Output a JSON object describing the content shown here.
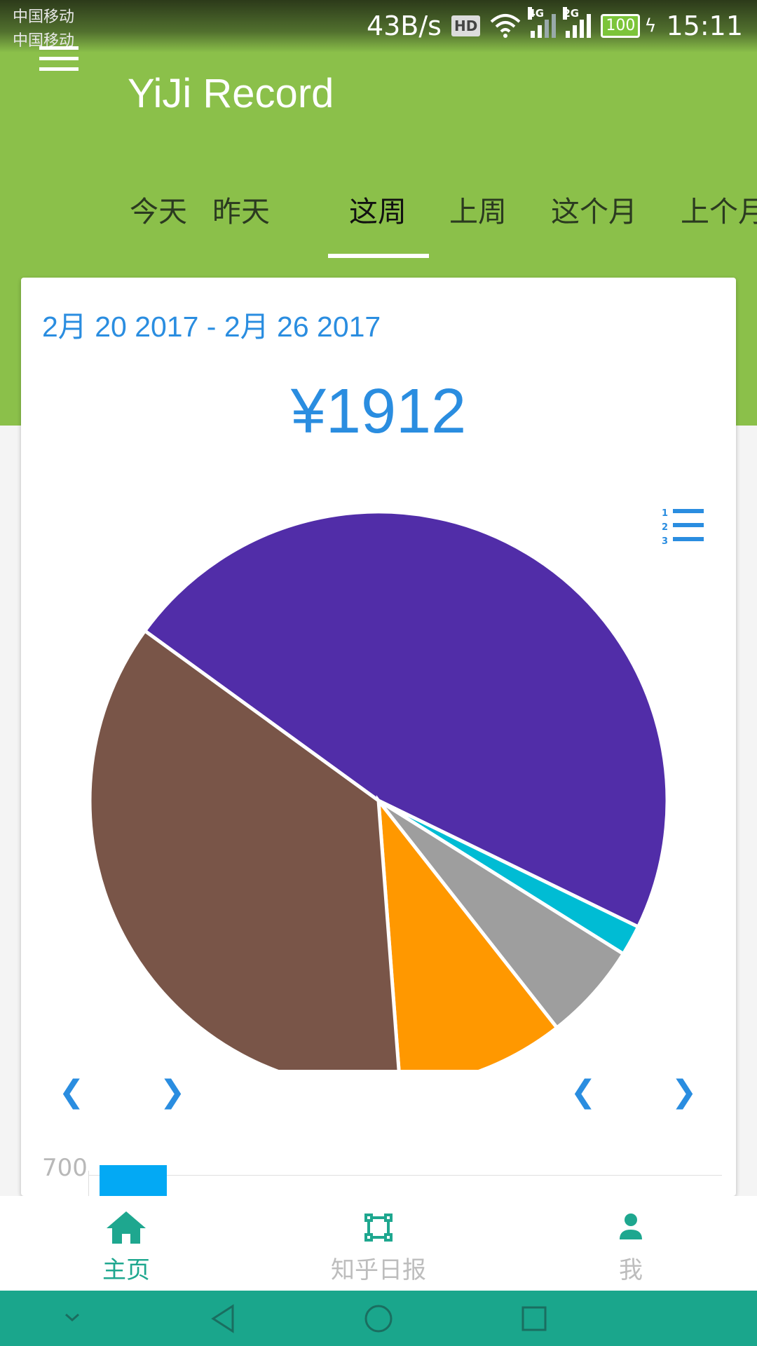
{
  "status_bar": {
    "carrier1": "中国移动",
    "carrier2": "中国移动",
    "speed": "43B/s",
    "hd": "HD",
    "net1": "4G",
    "net2": "2G",
    "battery": "100",
    "time": "15:11"
  },
  "header": {
    "title": "YiJi Record",
    "tabs": [
      "今天",
      "昨天",
      "这周",
      "上周",
      "这个月",
      "上个月"
    ],
    "active_tab": "这周"
  },
  "card": {
    "date_range": "2月 20 2017 - 2月 26 2017",
    "total": "¥1912",
    "bar_axis_label": "700"
  },
  "chart_data": {
    "type": "pie",
    "values": [
      47.2,
      1.7,
      5.5,
      9.4,
      36.2
    ],
    "colors": [
      "#512da8",
      "#00bcd4",
      "#9e9e9e",
      "#ff9800",
      "#795548"
    ]
  },
  "bottom_nav": {
    "items": [
      {
        "label": "主页",
        "icon": "home-icon",
        "active": true
      },
      {
        "label": "知乎日报",
        "icon": "crop-frame-icon",
        "active": false
      },
      {
        "label": "我",
        "icon": "person-icon",
        "active": false
      }
    ]
  },
  "colors": {
    "header_green": "#8bc04a",
    "accent_blue": "#2a8de0",
    "nav_teal": "#1aa68c"
  }
}
